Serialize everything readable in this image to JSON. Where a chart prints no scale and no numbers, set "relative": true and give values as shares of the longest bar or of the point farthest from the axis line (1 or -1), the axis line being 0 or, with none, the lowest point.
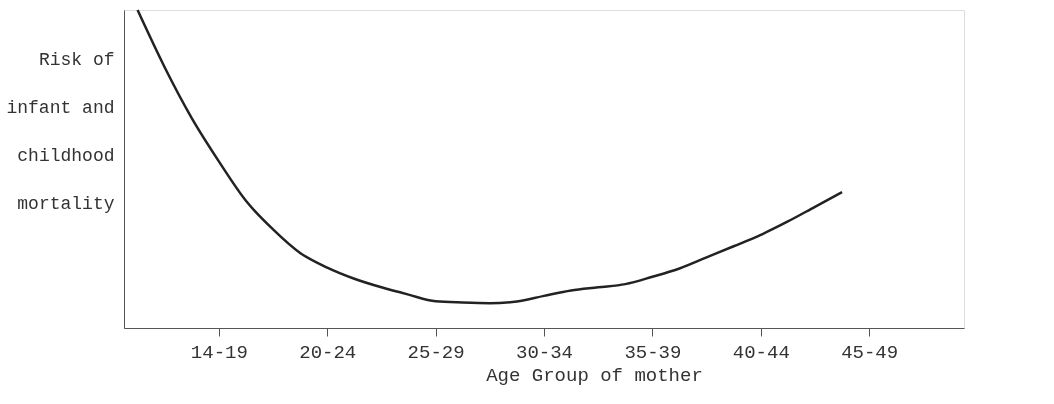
{
  "chart_data": {
    "type": "line",
    "relative": true,
    "xlabel": "Age Group of mother",
    "ylabel": "Risk of infant and childhood mortality",
    "categories": [
      null,
      null,
      null,
      "14-19",
      null,
      null,
      null,
      "20-24",
      null,
      null,
      null,
      "25-29",
      null,
      null,
      null,
      "30-34",
      null,
      null,
      null,
      "35-39",
      null,
      null,
      null,
      "40-44",
      null,
      null,
      null,
      "45-49",
      null,
      null,
      null
    ],
    "series": [
      {
        "color": "#222222",
        "values": [
          1.0,
          0.82,
          0.66,
          0.524,
          0.4,
          0.31,
          0.236,
          0.19,
          0.155,
          0.128,
          0.105,
          0.084,
          0.08,
          0.078,
          0.083,
          0.101,
          0.118,
          0.128,
          0.138,
          0.161,
          0.187,
          0.222,
          0.257,
          0.293,
          0.335,
          0.381,
          0.427,
          null,
          null,
          null,
          null
        ]
      }
    ],
    "grid": false,
    "marker": "none",
    "line_style": "solid"
  }
}
